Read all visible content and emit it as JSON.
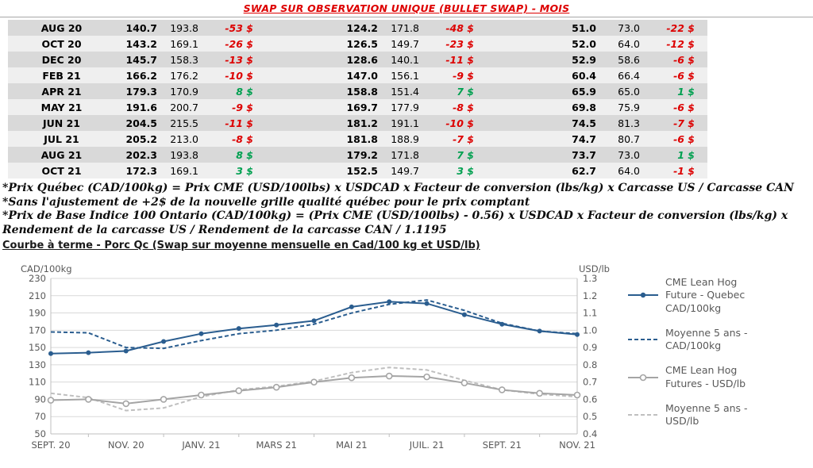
{
  "header": {
    "title": "SWAP SUR OBSERVATION UNIQUE (BULLET SWAP) - MOIS",
    "title_color": "#dd0000"
  },
  "table": {
    "negative_color": "#dd0000",
    "positive_color": "#00a050",
    "rows": [
      [
        "AUG 20",
        "140.7",
        "193.8",
        "-53 $",
        "124.2",
        "171.8",
        "-48 $",
        "51.0",
        "73.0",
        "-22 $"
      ],
      [
        "OCT 20",
        "143.2",
        "169.1",
        "-26 $",
        "126.5",
        "149.7",
        "-23 $",
        "52.0",
        "64.0",
        "-12 $"
      ],
      [
        "DEC 20",
        "145.7",
        "158.3",
        "-13 $",
        "128.6",
        "140.1",
        "-11 $",
        "52.9",
        "58.6",
        "-6 $"
      ],
      [
        "FEB 21",
        "166.2",
        "176.2",
        "-10 $",
        "147.0",
        "156.1",
        "-9 $",
        "60.4",
        "66.4",
        "-6 $"
      ],
      [
        "APR 21",
        "179.3",
        "170.9",
        "8 $",
        "158.8",
        "151.4",
        "7 $",
        "65.9",
        "65.0",
        "1 $"
      ],
      [
        "MAY 21",
        "191.6",
        "200.7",
        "-9 $",
        "169.7",
        "177.9",
        "-8 $",
        "69.8",
        "75.9",
        "-6 $"
      ],
      [
        "JUN 21",
        "204.5",
        "215.5",
        "-11 $",
        "181.2",
        "191.1",
        "-10 $",
        "74.5",
        "81.3",
        "-7 $"
      ],
      [
        "JUL 21",
        "205.2",
        "213.0",
        "-8 $",
        "181.8",
        "188.9",
        "-7 $",
        "74.7",
        "80.7",
        "-6 $"
      ],
      [
        "AUG 21",
        "202.3",
        "193.8",
        "8 $",
        "179.2",
        "171.8",
        "7 $",
        "73.7",
        "73.0",
        "1 $"
      ],
      [
        "OCT 21",
        "172.3",
        "169.1",
        "3 $",
        "152.5",
        "149.7",
        "3 $",
        "62.7",
        "64.0",
        "-1 $"
      ]
    ]
  },
  "footnotes": [
    "*Prix Québec (CAD/100kg) = Prix CME (USD/100lbs) x USDCAD x Facteur de conversion (lbs/kg) x Carcasse US / Carcasse CAN",
    "*Sans l'ajustement de +2$ de la nouvelle grille qualité québec pour le prix comptant",
    "*Prix de Base Indice 100 Ontario (CAD/100kg) = (Prix CME (USD/100lbs) - 0.56) x USDCAD x Facteur de conversion (lbs/kg) x Rendement de la carcasse US / Rendement de la carcasse CAN / 1.1195"
  ],
  "chart_section": {
    "title": "Courbe à terme - Porc Qc (Swap sur moyenne mensuelle en Cad/100 kg et USD/lb)"
  },
  "chart_data": {
    "type": "line",
    "x_labels": [
      "SEPT. 20",
      "NOV. 20",
      "JANV. 21",
      "MARS 21",
      "MAI 21",
      "JUIL. 21",
      "SEPT. 21",
      "NOV. 21"
    ],
    "x_label_indices": [
      0,
      2,
      4,
      6,
      8,
      10,
      12,
      14
    ],
    "x_count": 15,
    "grid": true,
    "legend_position": "right",
    "left_axis": {
      "title": "CAD/100kg",
      "min": 50,
      "max": 230,
      "ticks": [
        230,
        210,
        190,
        170,
        150,
        130,
        110,
        90,
        70,
        50
      ]
    },
    "right_axis": {
      "title": "USD/lb",
      "min": 0.4,
      "max": 1.3,
      "ticks": [
        "1.3",
        "1.2",
        "1.1",
        "1.0",
        "0.9",
        "0.8",
        "0.7",
        "0.6",
        "0.5",
        "0.4"
      ]
    },
    "series": [
      {
        "label": "CME Lean Hog Future - Quebec CAD/100kg",
        "axis": "left",
        "color": "#2a5d8f",
        "dash": null,
        "marker": "dot",
        "values": [
          143,
          144,
          146,
          157,
          166,
          172,
          176,
          181,
          197,
          203,
          201,
          188,
          177,
          169,
          165
        ]
      },
      {
        "label": "Moyenne 5 ans - CAD/100kg",
        "axis": "left",
        "color": "#2a5d8f",
        "dash": "5 3",
        "marker": null,
        "values": [
          168,
          167,
          150,
          149,
          158,
          166,
          170,
          177,
          190,
          200,
          205,
          193,
          178,
          169,
          166
        ]
      },
      {
        "label": "CME Lean Hog Futures - USD/lb",
        "axis": "right",
        "color": "#a5a5a5",
        "dash": null,
        "marker": "circle",
        "values": [
          0.595,
          0.6,
          0.575,
          0.6,
          0.625,
          0.65,
          0.67,
          0.7,
          0.725,
          0.735,
          0.73,
          0.695,
          0.655,
          0.635,
          0.625
        ]
      },
      {
        "label": "Moyenne 5 ans - USD/lb",
        "axis": "right",
        "color": "#bfbfbf",
        "dash": "5 3",
        "marker": null,
        "values": [
          0.635,
          0.61,
          0.535,
          0.55,
          0.615,
          0.655,
          0.675,
          0.705,
          0.755,
          0.785,
          0.77,
          0.71,
          0.655,
          0.63,
          0.615
        ]
      }
    ]
  }
}
